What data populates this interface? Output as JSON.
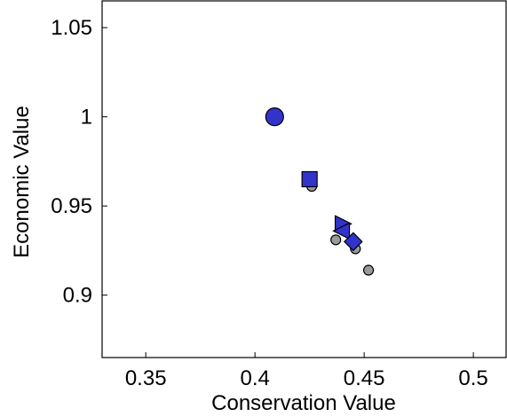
{
  "chart_data": {
    "type": "scatter",
    "title": "",
    "xlabel": "Conservation Value",
    "ylabel": "Economic Value",
    "xlim": [
      0.33,
      0.515
    ],
    "ylim": [
      0.865,
      1.065
    ],
    "xticks": [
      0.35,
      0.4,
      0.45,
      0.5
    ],
    "xtick_labels": [
      "0.35",
      "0.4",
      "0.45",
      "0.5"
    ],
    "yticks": [
      0.9,
      0.95,
      1.0,
      1.05
    ],
    "ytick_labels": [
      "0.9",
      "0.95",
      "1",
      "1.05"
    ],
    "grid": false,
    "series": [
      {
        "marker": "circle",
        "color": "#9a9a9a",
        "points": [
          {
            "x": 0.426,
            "y": 0.961
          },
          {
            "x": 0.437,
            "y": 0.931
          },
          {
            "x": 0.446,
            "y": 0.926
          },
          {
            "x": 0.452,
            "y": 0.914
          }
        ]
      },
      {
        "marker": "circle",
        "color": "#3333cc",
        "points": [
          {
            "x": 0.409,
            "y": 1.0
          }
        ]
      },
      {
        "marker": "square",
        "color": "#3333cc",
        "points": [
          {
            "x": 0.425,
            "y": 0.965
          }
        ]
      },
      {
        "marker": "triangle-right",
        "color": "#3333cc",
        "points": [
          {
            "x": 0.44,
            "y": 0.94
          }
        ]
      },
      {
        "marker": "triangle-left",
        "color": "#3333cc",
        "points": [
          {
            "x": 0.44,
            "y": 0.936
          }
        ]
      },
      {
        "marker": "diamond",
        "color": "#3333cc",
        "points": [
          {
            "x": 0.445,
            "y": 0.93
          }
        ]
      }
    ]
  }
}
